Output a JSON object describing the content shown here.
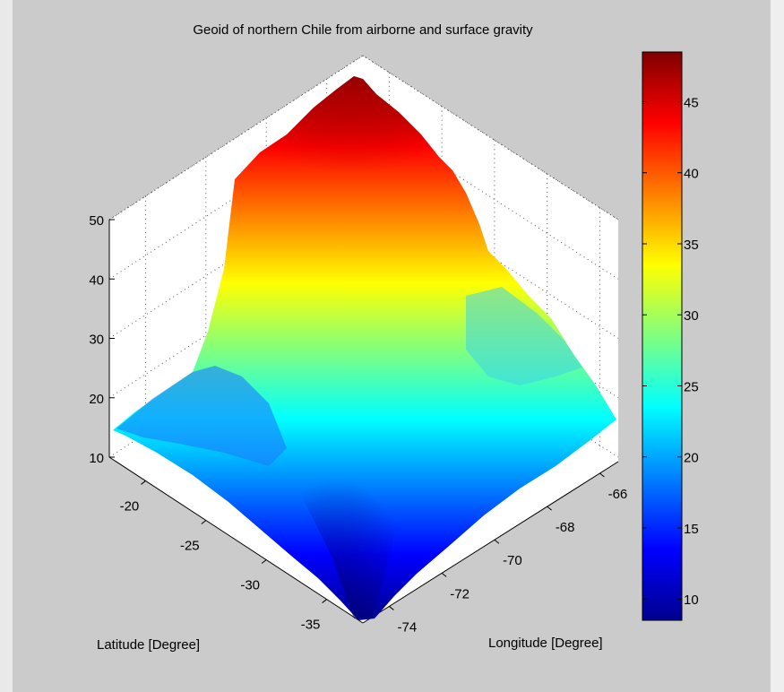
{
  "window": {
    "bg_color": "#cbcbcb",
    "side_color": "#e9e9e9"
  },
  "chart_data": {
    "type": "surface",
    "title": "Geoid of northern Chile from airborne and surface gravity",
    "xlabel": "Latitude [Degree]",
    "ylabel": "Longitude [Degree]",
    "zlabel": "",
    "view": "diamond (isometric) view from above, latitude axis lower-left, longitude axis lower-right",
    "colormap": "jet",
    "grid": "on (dotted)",
    "latitude_ticks": [
      "-20",
      "-25",
      "-30",
      "-35"
    ],
    "longitude_ticks": [
      "-74",
      "-72",
      "-70",
      "-68",
      "-66"
    ],
    "z_ticks": [
      "10",
      "20",
      "30",
      "40",
      "50"
    ],
    "z_range": [
      10,
      50
    ],
    "colorbar": {
      "position": "right",
      "range": [
        8.5,
        48.5
      ],
      "ticks": [
        "10",
        "15",
        "20",
        "25",
        "30",
        "35",
        "40",
        "45"
      ]
    },
    "surface_samples": {
      "description": "approximate geoid height (m) estimated from colors at grid nodes",
      "latitude": [
        -18,
        -22,
        -26,
        -30,
        -34,
        -37
      ],
      "longitude": [
        -75,
        -73,
        -71,
        -69,
        -67
      ],
      "height": [
        [
          22,
          31,
          43,
          47,
          40
        ],
        [
          19,
          27,
          40,
          42,
          28
        ],
        [
          17,
          24,
          37,
          34,
          23
        ],
        [
          15,
          21,
          30,
          27,
          20
        ],
        [
          13,
          16,
          22,
          22,
          18
        ],
        [
          9,
          12,
          18,
          19,
          16
        ]
      ]
    }
  }
}
